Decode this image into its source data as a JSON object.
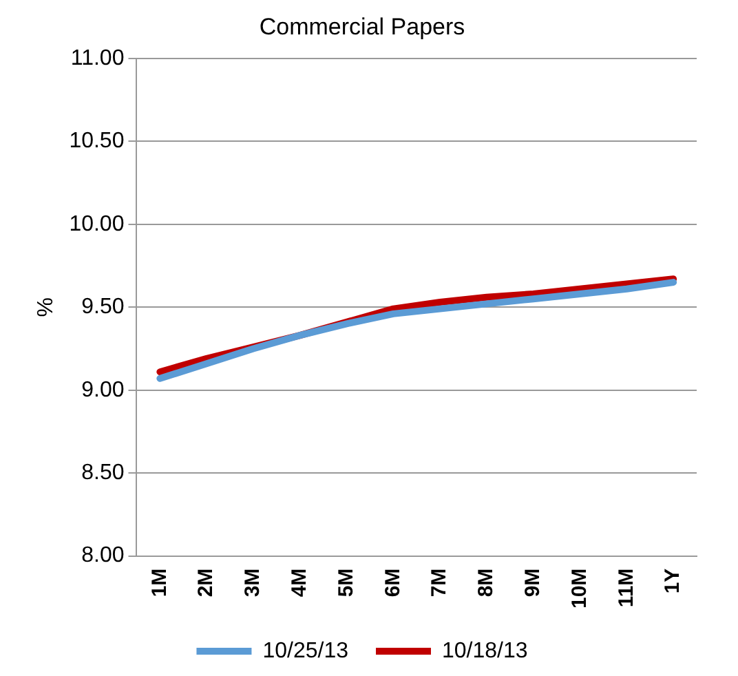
{
  "chart_data": {
    "type": "line",
    "title": "Commercial Papers",
    "ylabel": "%",
    "categories": [
      "1M",
      "2M",
      "3M",
      "4M",
      "5M",
      "6M",
      "7M",
      "8M",
      "9M",
      "10M",
      "11M",
      "1Y"
    ],
    "series": [
      {
        "name": "10/25/13",
        "color": "#5b9bd5",
        "values": [
          9.07,
          9.16,
          9.25,
          9.33,
          9.4,
          9.46,
          9.49,
          9.52,
          9.55,
          9.58,
          9.61,
          9.65
        ]
      },
      {
        "name": "10/18/13",
        "color": "#c00000",
        "values": [
          9.11,
          9.19,
          9.26,
          9.33,
          9.41,
          9.49,
          9.53,
          9.56,
          9.58,
          9.61,
          9.64,
          9.67
        ]
      }
    ],
    "ylim": [
      8,
      11
    ],
    "yticks": [
      {
        "value": 8,
        "label": "8.00"
      },
      {
        "value": 8.5,
        "label": "8.50"
      },
      {
        "value": 9,
        "label": "9.00"
      },
      {
        "value": 9.5,
        "label": "9.50"
      },
      {
        "value": 10,
        "label": "10.00"
      },
      {
        "value": 10.5,
        "label": "10.50"
      },
      {
        "value": 11,
        "label": "11.00"
      }
    ],
    "grid": "y",
    "legend": "bottom",
    "marker": "none",
    "line_style": "solid"
  }
}
